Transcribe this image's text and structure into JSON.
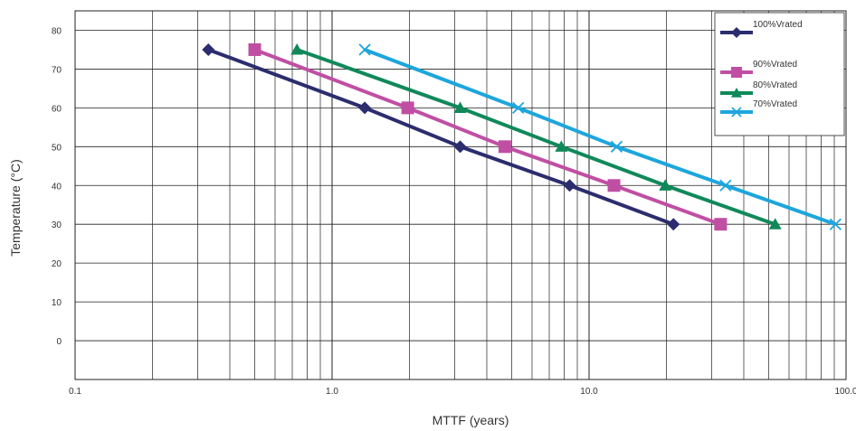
{
  "chart_data": {
    "type": "line",
    "xlabel": "MTTF (years)",
    "ylabel": "Temperature (°C)",
    "xscale": "log",
    "xlim": [
      0.1,
      100
    ],
    "ylim": [
      -10,
      85
    ],
    "x_ticks": [
      0.1,
      1,
      10,
      100
    ],
    "x_tick_labels": [
      "0.1",
      "1.0",
      "10.0",
      "100.0"
    ],
    "y_ticks": [
      0,
      10,
      20,
      30,
      40,
      50,
      60,
      70,
      80
    ],
    "y_tick_labels": [
      "0",
      "10",
      "20",
      "30",
      "40",
      "50",
      "60",
      "70",
      "80"
    ],
    "grid": true,
    "legend_position": "top-right",
    "series": [
      {
        "name": "100%Vrated",
        "color": "#2b2d6e",
        "marker": "diamond",
        "x": [
          0.33,
          1.34,
          3.15,
          8.4,
          21.3
        ],
        "y": [
          75,
          60,
          50,
          40,
          30
        ]
      },
      {
        "name": "90%Vrated",
        "color": "#c04fa3",
        "marker": "square",
        "x": [
          0.5,
          1.97,
          4.7,
          12.5,
          32.5
        ],
        "y": [
          75,
          60,
          50,
          40,
          30
        ]
      },
      {
        "name": "80%Vrated",
        "color": "#10895a",
        "marker": "triangle",
        "x": [
          0.73,
          3.15,
          7.8,
          19.8,
          53.0
        ],
        "y": [
          75,
          60,
          50,
          40,
          30
        ]
      },
      {
        "name": "70%Vrated",
        "color": "#1ea6dc",
        "marker": "x",
        "x": [
          1.34,
          5.3,
          12.8,
          34.0,
          91.0
        ],
        "y": [
          75,
          60,
          50,
          40,
          30
        ]
      }
    ]
  }
}
